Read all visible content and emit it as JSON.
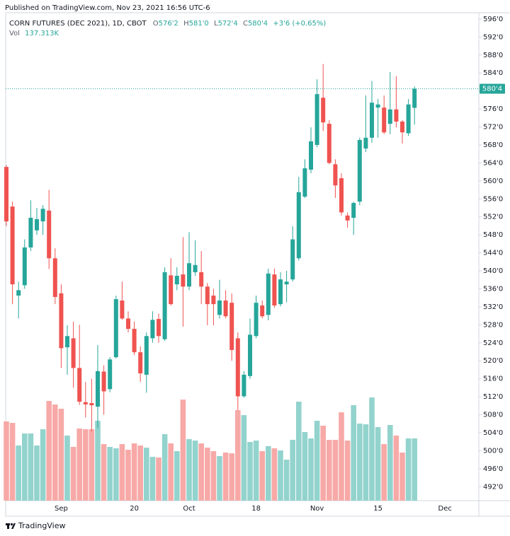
{
  "published": "Published on TradingView.com, Nov 23, 2021 16:56 UTC-6",
  "footer_brand": "TradingView",
  "chart_data": {
    "type": "candlestick",
    "title": "CORN FUTURES (DEC 2021), 1D, CBOT",
    "ohlc_keys": [
      "O",
      "H",
      "L",
      "C"
    ],
    "ohlc_values": [
      "576'2",
      "581'0",
      "572'4",
      "580'4"
    ],
    "change_label": "+3'6 (+0.65%)",
    "volume_label": "Vol",
    "volume_value_label": "137.313K",
    "last_price_label": "580'4",
    "up_color": "#26a69a",
    "down_color": "#ef5350",
    "volume_up_color": "#93d3cd",
    "volume_down_color": "#f7a9a7",
    "grid": false,
    "categories": [
      null,
      null,
      null,
      null,
      null,
      null,
      null,
      null,
      null,
      "Sep",
      null,
      null,
      null,
      null,
      null,
      null,
      null,
      null,
      null,
      null,
      null,
      "20",
      null,
      null,
      null,
      null,
      null,
      null,
      null,
      null,
      "Oct",
      null,
      null,
      null,
      null,
      null,
      null,
      null,
      null,
      null,
      null,
      "18",
      null,
      null,
      null,
      null,
      null,
      null,
      null,
      null,
      null,
      "Nov",
      null,
      null,
      null,
      null,
      null,
      null,
      null,
      null,
      null,
      "15",
      null,
      null,
      null,
      null,
      null,
      null,
      null,
      null,
      null,
      null,
      "Dec",
      null,
      null,
      null,
      null
    ],
    "open": [
      563.1,
      554.3,
      534.5,
      536.8,
      545.2,
      549,
      551,
      553.4,
      542.8,
      535,
      523,
      525,
      518.4,
      510.8,
      510.6,
      509.8,
      517.6,
      513.7,
      520.8,
      533.4,
      529.4,
      527.1,
      521.9,
      516.9,
      525,
      529.3,
      524.8,
      539,
      537,
      539.2,
      536.5,
      539.7,
      539.7,
      536.5,
      534.5,
      530.2,
      533.4,
      532.9,
      525,
      512.1,
      516.6,
      525.5,
      532.3,
      530.2,
      539.2,
      532.6,
      537,
      538.1,
      542.8,
      556.5,
      562.5,
      568,
      578.5,
      572.7,
      563.7,
      560.6,
      552.3,
      551.8,
      555.4,
      567.2,
      569.6,
      576.3,
      576.3,
      572.7,
      575.9,
      573.2,
      570.6,
      576.25,
      null,
      null,
      null,
      null,
      null,
      null,
      null,
      null,
      null
    ],
    "high": [
      563.5,
      555.4,
      537.6,
      547,
      555.7,
      554,
      554.6,
      558,
      545,
      537,
      527.9,
      528.7,
      528,
      515.3,
      516,
      523.5,
      519,
      520.8,
      534.5,
      537.6,
      531,
      528.7,
      523.2,
      526.3,
      531,
      530.5,
      540.8,
      542.8,
      540.8,
      547.5,
      548.6,
      546.8,
      544.4,
      537.3,
      536,
      538,
      535.7,
      535,
      526.3,
      517.7,
      529.4,
      534.5,
      533.4,
      540.5,
      540.5,
      539.7,
      540,
      549.9,
      560.9,
      564.8,
      571.9,
      582.6,
      586,
      573.5,
      564.8,
      561.7,
      553,
      555.4,
      569.6,
      579,
      582.2,
      578.2,
      579,
      584.2,
      583.3,
      573.5,
      578.2,
      581,
      null,
      null,
      null,
      null,
      null,
      null,
      null,
      null,
      null
    ],
    "low": [
      550,
      532.6,
      529.4,
      536,
      544.4,
      548,
      548,
      540.4,
      532.6,
      518.4,
      516.9,
      514,
      510.2,
      507.4,
      504.3,
      505,
      508,
      513,
      520.5,
      529.1,
      526.3,
      521.3,
      515.3,
      512.9,
      524,
      524,
      524.4,
      532.3,
      535.7,
      527.6,
      535.7,
      538.9,
      532.6,
      527.9,
      527.9,
      529.4,
      529.4,
      520,
      509,
      511.8,
      516,
      525,
      529.4,
      529,
      531.8,
      532.1,
      533,
      537.6,
      542.3,
      556.2,
      561.7,
      567.5,
      571.1,
      563.7,
      556.2,
      552.3,
      549.6,
      548,
      554.6,
      566.4,
      568.5,
      569.6,
      570.4,
      570.4,
      571.9,
      568.3,
      570,
      572.5,
      null,
      null,
      null,
      null,
      null,
      null,
      null,
      null,
      null
    ],
    "close": [
      551,
      537,
      535.7,
      545.2,
      551.8,
      551.5,
      553.8,
      542.8,
      534.2,
      522.8,
      525.5,
      518.4,
      510.9,
      510.3,
      510.1,
      517.7,
      513.2,
      520.3,
      533.7,
      529.4,
      527.1,
      521.9,
      517.2,
      525.5,
      529.1,
      525.5,
      539.7,
      532.6,
      538.9,
      536.5,
      541.7,
      541.3,
      536.5,
      532.6,
      532.6,
      533.4,
      529.9,
      522.4,
      512.1,
      516.9,
      525.8,
      532.9,
      529.9,
      539.4,
      532.3,
      538.1,
      537.6,
      547,
      557.5,
      562.8,
      568.8,
      579.3,
      573,
      564,
      559,
      553,
      551.2,
      555.1,
      569.1,
      569.6,
      577.4,
      577,
      570.8,
      575.9,
      573.2,
      570.8,
      577,
      580.5,
      null,
      null,
      null,
      null,
      null,
      null,
      null,
      null,
      null
    ],
    "volume": [
      174.8,
      171.6,
      121.7,
      148.2,
      148.2,
      121.7,
      157.6,
      220,
      212.2,
      202.9,
      143.6,
      118.6,
      159.2,
      157.6,
      157.6,
      176.3,
      124.8,
      118.6,
      115.5,
      124.8,
      112.3,
      126.4,
      121.7,
      117,
      96.7,
      95.2,
      146.7,
      126.4,
      109.2,
      223.1,
      135.8,
      132.6,
      126.4,
      117,
      109.2,
      98.3,
      106.1,
      104.5,
      199.7,
      188.8,
      129.5,
      132.6,
      109.2,
      120.2,
      115.5,
      110.8,
      90.5,
      134.2,
      218.5,
      151.4,
      137.3,
      176.3,
      165.4,
      134.2,
      134.2,
      195,
      132.6,
      210.7,
      170.1,
      168.5,
      227.8,
      162.3,
      124.8,
      167,
      143.6,
      106.1,
      137.3,
      137.313,
      null,
      null,
      null,
      null,
      null,
      null,
      null,
      null,
      null
    ],
    "ylim": [
      488.9,
      597.4
    ],
    "y2lim": [
      0,
      1077
    ],
    "yticks": [
      {
        "value": 596,
        "label": "596'0"
      },
      {
        "value": 592,
        "label": "592'0"
      },
      {
        "value": 588,
        "label": "588'0"
      },
      {
        "value": 584,
        "label": "584'0"
      },
      {
        "value": 580,
        "label": "580'0"
      },
      {
        "value": 576,
        "label": "576'0"
      },
      {
        "value": 572,
        "label": "572'0"
      },
      {
        "value": 568,
        "label": "568'0"
      },
      {
        "value": 564,
        "label": "564'0"
      },
      {
        "value": 560,
        "label": "560'0"
      },
      {
        "value": 556,
        "label": "556'0"
      },
      {
        "value": 552,
        "label": "552'0"
      },
      {
        "value": 548,
        "label": "548'0"
      },
      {
        "value": 544,
        "label": "544'0"
      },
      {
        "value": 540,
        "label": "540'0"
      },
      {
        "value": 536,
        "label": "536'0"
      },
      {
        "value": 532,
        "label": "532'0"
      },
      {
        "value": 528,
        "label": "528'0"
      },
      {
        "value": 524,
        "label": "524'0"
      },
      {
        "value": 520,
        "label": "520'0"
      },
      {
        "value": 516,
        "label": "516'0"
      },
      {
        "value": 512,
        "label": "512'0"
      },
      {
        "value": 508,
        "label": "508'0"
      },
      {
        "value": 504,
        "label": "504'0"
      },
      {
        "value": 500,
        "label": "500'0"
      },
      {
        "value": 496,
        "label": "496'0"
      },
      {
        "value": 492,
        "label": "492'0"
      }
    ]
  }
}
